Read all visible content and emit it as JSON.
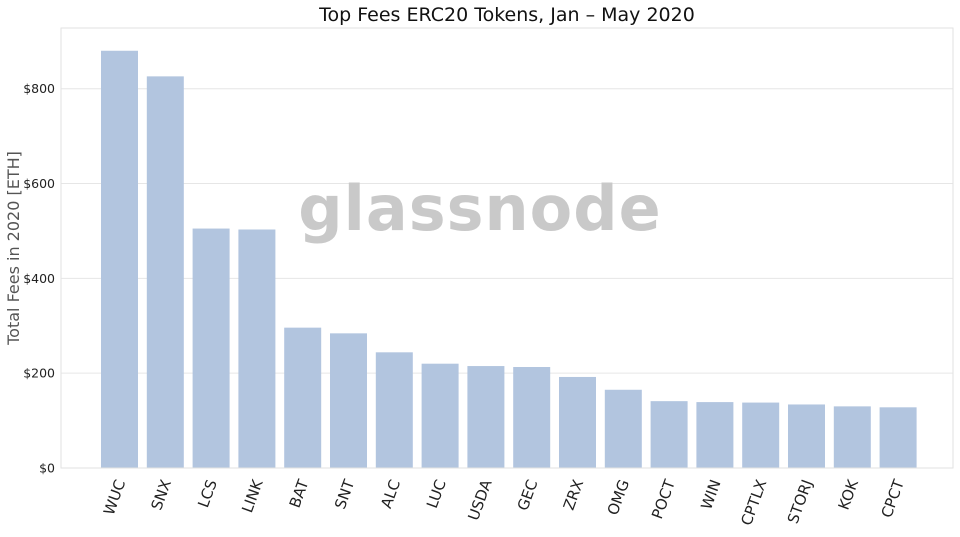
{
  "chart_data": {
    "type": "bar",
    "title": "Top Fees ERC20 Tokens, Jan – May 2020",
    "xlabel": "",
    "ylabel": "Total Fees in 2020 [ETH]",
    "categories": [
      "WUC",
      "SNX",
      "LCS",
      "LINK",
      "BAT",
      "SNT",
      "ALC",
      "LUC",
      "USDA",
      "GEC",
      "ZRX",
      "OMG",
      "POCT",
      "WIN",
      "CPTLX",
      "STORJ",
      "KOK",
      "CPCT"
    ],
    "values": [
      880,
      826,
      505,
      503,
      296,
      284,
      244,
      220,
      215,
      213,
      192,
      165,
      141,
      139,
      138,
      134,
      130,
      128
    ],
    "yticks": [
      0,
      200,
      400,
      600,
      800
    ],
    "ytick_labels": [
      "$0",
      "$200",
      "$400",
      "$600",
      "$800"
    ],
    "ylim": [
      0,
      928
    ],
    "grid": true,
    "bar_color": "#b2c5df",
    "watermark": "glassnode"
  }
}
